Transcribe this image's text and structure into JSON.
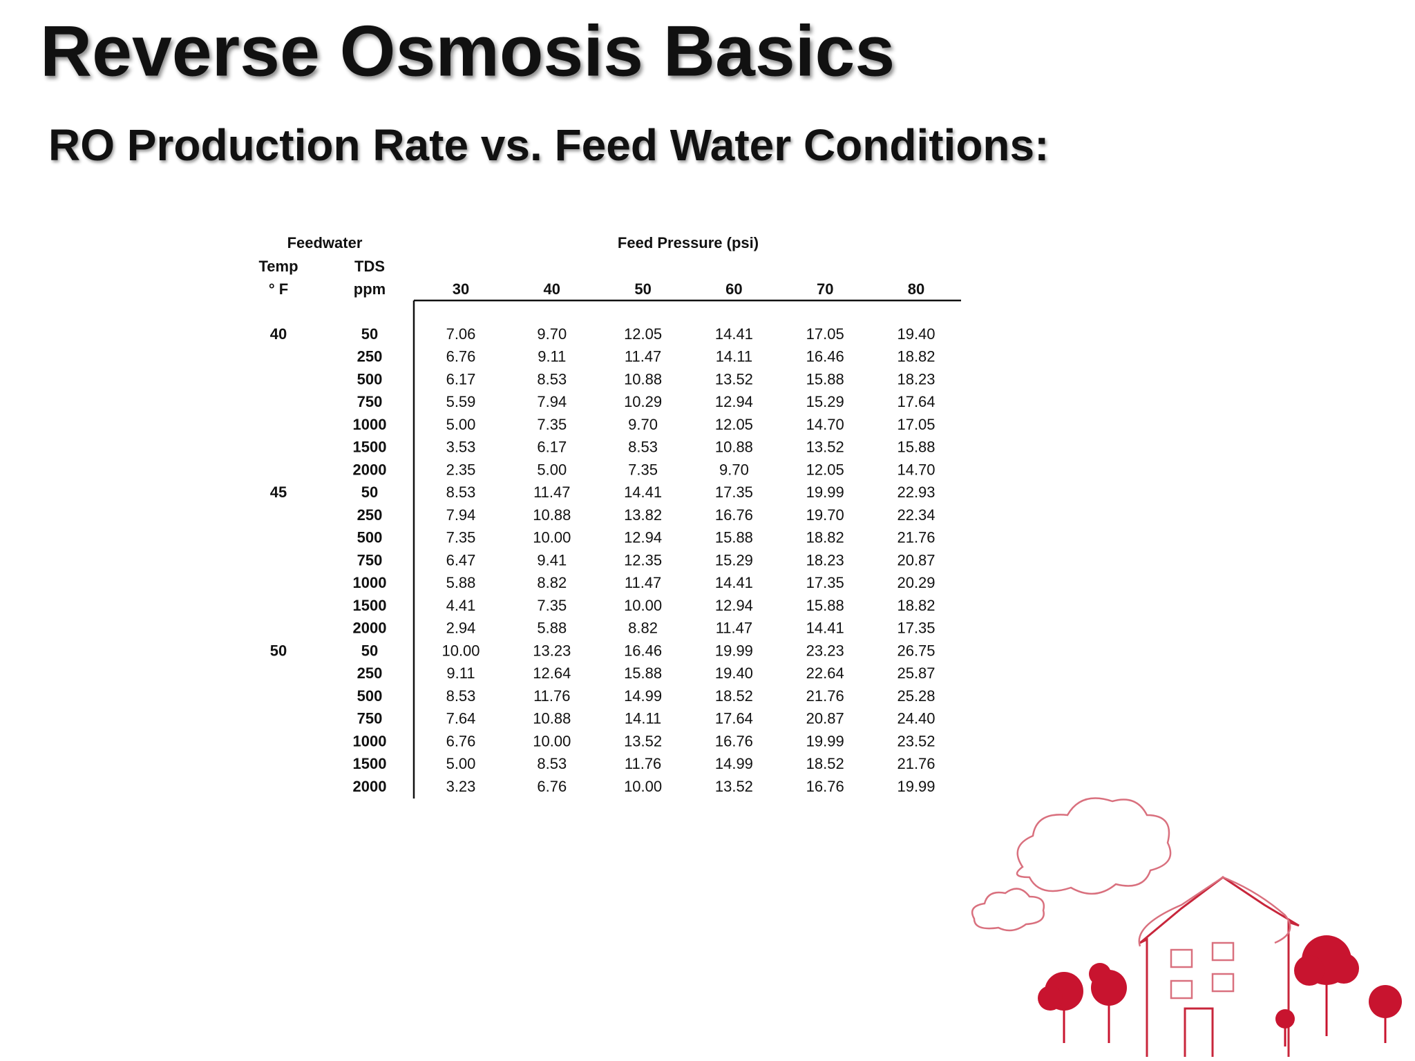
{
  "header": {
    "title": "Reverse Osmosis Basics",
    "subtitle": "RO Production Rate vs. Feed Water Conditions:"
  },
  "table": {
    "group_label": "Feedwater",
    "pressure_label": "Feed Pressure (psi)",
    "temp_label": "Temp",
    "tds_label": "TDS",
    "temp_unit": "° F",
    "tds_unit": "ppm",
    "pressures": [
      "30",
      "40",
      "50",
      "60",
      "70",
      "80"
    ],
    "rows": [
      {
        "temp": "40",
        "tds": "50",
        "values": [
          "7.06",
          "9.70",
          "12.05",
          "14.41",
          "17.05",
          "19.40"
        ]
      },
      {
        "tds": "250",
        "values": [
          "6.76",
          "9.11",
          "11.47",
          "14.11",
          "16.46",
          "18.82"
        ]
      },
      {
        "tds": "500",
        "values": [
          "6.17",
          "8.53",
          "10.88",
          "13.52",
          "15.88",
          "18.23"
        ]
      },
      {
        "tds": "750",
        "values": [
          "5.59",
          "7.94",
          "10.29",
          "12.94",
          "15.29",
          "17.64"
        ]
      },
      {
        "tds": "1000",
        "values": [
          "5.00",
          "7.35",
          "9.70",
          "12.05",
          "14.70",
          "17.05"
        ]
      },
      {
        "tds": "1500",
        "values": [
          "3.53",
          "6.17",
          "8.53",
          "10.88",
          "13.52",
          "15.88"
        ]
      },
      {
        "tds": "2000",
        "values": [
          "2.35",
          "5.00",
          "7.35",
          "9.70",
          "12.05",
          "14.70"
        ]
      },
      {
        "temp": "45",
        "tds": "50",
        "values": [
          "8.53",
          "11.47",
          "14.41",
          "17.35",
          "19.99",
          "22.93"
        ]
      },
      {
        "tds": "250",
        "values": [
          "7.94",
          "10.88",
          "13.82",
          "16.76",
          "19.70",
          "22.34"
        ]
      },
      {
        "tds": "500",
        "values": [
          "7.35",
          "10.00",
          "12.94",
          "15.88",
          "18.82",
          "21.76"
        ]
      },
      {
        "tds": "750",
        "values": [
          "6.47",
          "9.41",
          "12.35",
          "15.29",
          "18.23",
          "20.87"
        ]
      },
      {
        "tds": "1000",
        "values": [
          "5.88",
          "8.82",
          "11.47",
          "14.41",
          "17.35",
          "20.29"
        ]
      },
      {
        "tds": "1500",
        "values": [
          "4.41",
          "7.35",
          "10.00",
          "12.94",
          "15.88",
          "18.82"
        ]
      },
      {
        "tds": "2000",
        "values": [
          "2.94",
          "5.88",
          "8.82",
          "11.47",
          "14.41",
          "17.35"
        ]
      },
      {
        "temp": "50",
        "tds": "50",
        "values": [
          "10.00",
          "13.23",
          "16.46",
          "19.99",
          "23.23",
          "26.75"
        ]
      },
      {
        "tds": "250",
        "values": [
          "9.11",
          "12.64",
          "15.88",
          "19.40",
          "22.64",
          "25.87"
        ]
      },
      {
        "tds": "500",
        "values": [
          "8.53",
          "11.76",
          "14.99",
          "18.52",
          "21.76",
          "25.28"
        ]
      },
      {
        "tds": "750",
        "values": [
          "7.64",
          "10.88",
          "14.11",
          "17.64",
          "20.87",
          "24.40"
        ]
      },
      {
        "tds": "1000",
        "values": [
          "6.76",
          "10.00",
          "13.52",
          "16.76",
          "19.99",
          "23.52"
        ]
      },
      {
        "tds": "1500",
        "values": [
          "5.00",
          "8.53",
          "11.76",
          "14.99",
          "18.52",
          "21.76"
        ]
      },
      {
        "tds": "2000",
        "values": [
          "3.23",
          "6.76",
          "10.00",
          "13.52",
          "16.76",
          "19.99"
        ]
      }
    ]
  }
}
